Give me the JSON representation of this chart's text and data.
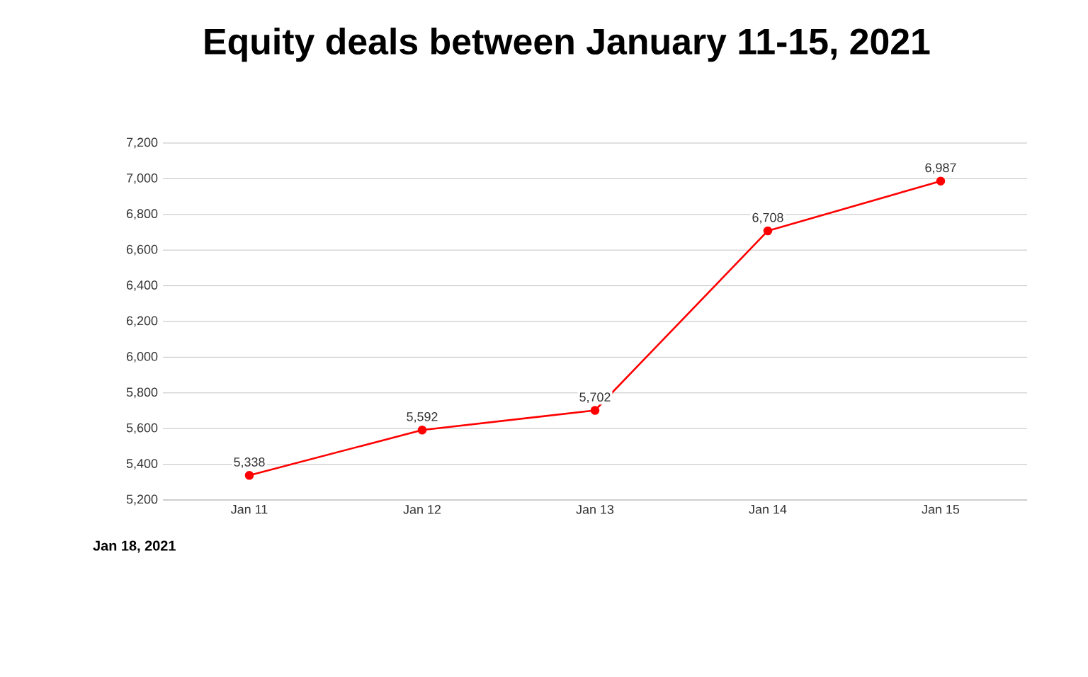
{
  "chart_data": {
    "type": "line",
    "title": "Equity deals between January 11-15, 2021",
    "categories": [
      "Jan 11",
      "Jan 12",
      "Jan 13",
      "Jan 14",
      "Jan 15"
    ],
    "values": [
      5338,
      5592,
      5702,
      6708,
      6987
    ],
    "value_labels": [
      "5,338",
      "5,592",
      "5,702",
      "6,708",
      "6,987"
    ],
    "color": "#ff0000",
    "marker": "circle",
    "line_style": "solid",
    "grid": "y",
    "ylim": [
      5200,
      7200
    ],
    "yticks": [
      {
        "value": 5200,
        "label": "5,200"
      },
      {
        "value": 5400,
        "label": "5,400"
      },
      {
        "value": 5600,
        "label": "5,600"
      },
      {
        "value": 5800,
        "label": "5,800"
      },
      {
        "value": 6000,
        "label": "6,000"
      },
      {
        "value": 6200,
        "label": "6,200"
      },
      {
        "value": 6400,
        "label": "6,400"
      },
      {
        "value": 6600,
        "label": "6,600"
      },
      {
        "value": 6800,
        "label": "6,800"
      },
      {
        "value": 7000,
        "label": "7,000"
      },
      {
        "value": 7200,
        "label": "7,200"
      }
    ],
    "annotations": [
      "Jan 18, 2021"
    ]
  }
}
